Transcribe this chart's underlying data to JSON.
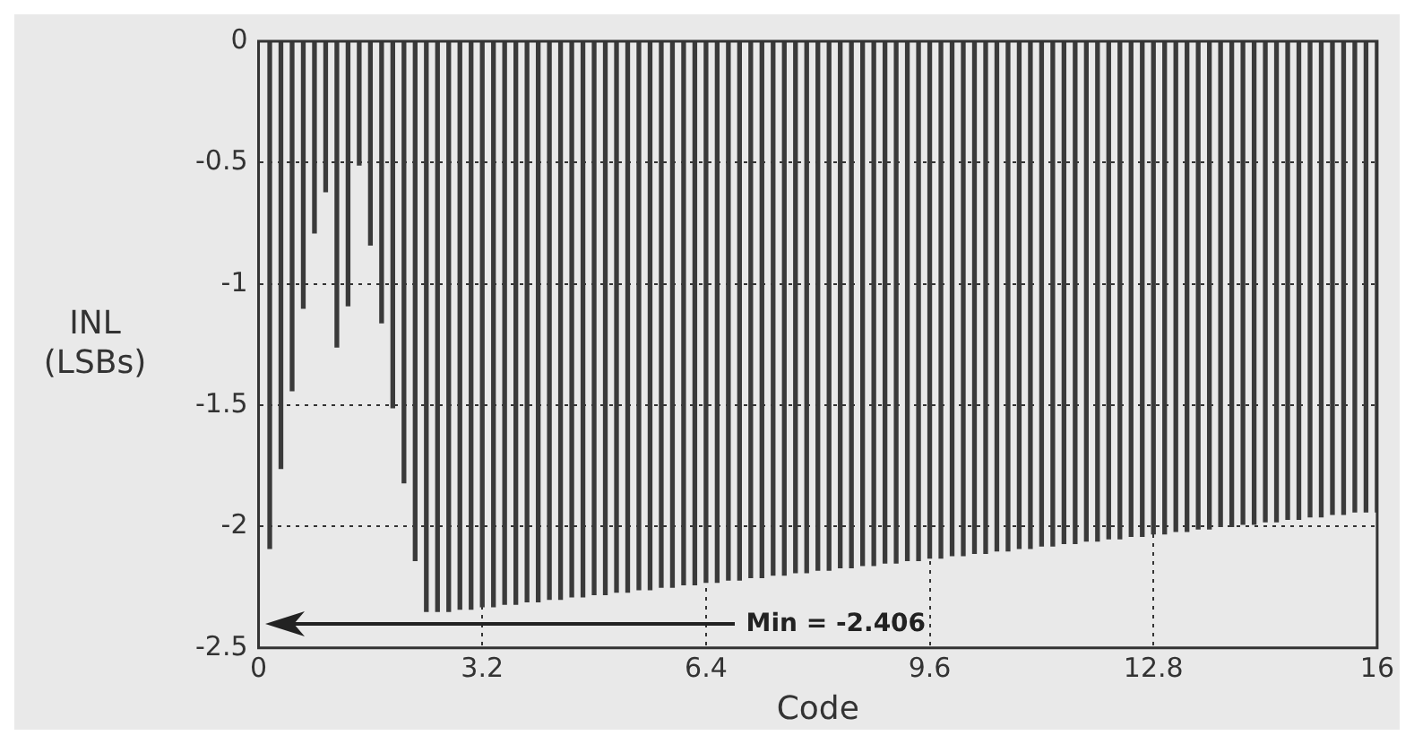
{
  "chart_data": {
    "type": "bar",
    "xlabel": "Code",
    "ylabel": "INL (LSBs)",
    "x": [
      0.16,
      0.32,
      0.48,
      0.64,
      0.8,
      0.96,
      1.12,
      1.28,
      1.44,
      1.6,
      1.76,
      1.92,
      2.08,
      2.24,
      2.4,
      2.56,
      2.72,
      2.88,
      3.04,
      3.2,
      3.36,
      3.52,
      3.68,
      3.84,
      4,
      4.16,
      4.32,
      4.48,
      4.64,
      4.8,
      4.96,
      5.12,
      5.28,
      5.44,
      5.6,
      5.76,
      5.92,
      6.08,
      6.24,
      6.4,
      6.56,
      6.72,
      6.88,
      7.04,
      7.2,
      7.36,
      7.52,
      7.68,
      7.84,
      8,
      8.16,
      8.32,
      8.48,
      8.64,
      8.8,
      8.96,
      9.12,
      9.28,
      9.44,
      9.6,
      9.76,
      9.92,
      10.08,
      10.24,
      10.4,
      10.56,
      10.72,
      10.88,
      11.04,
      11.2,
      11.36,
      11.52,
      11.68,
      11.84,
      12,
      12.16,
      12.32,
      12.48,
      12.64,
      12.8,
      12.96,
      13.12,
      13.28,
      13.44,
      13.6,
      13.76,
      13.92,
      14.08,
      14.24,
      14.4,
      14.56,
      14.72,
      14.88,
      15.04,
      15.2,
      15.36,
      15.52,
      15.68,
      15.84,
      16
    ],
    "values": [
      -2.09,
      -1.76,
      -1.44,
      -1.1,
      -0.79,
      -0.62,
      -1.26,
      -1.09,
      -0.51,
      -0.84,
      -1.16,
      -1.51,
      -1.82,
      -2.14,
      -2.35,
      -2.35,
      -2.35,
      -2.34,
      -2.34,
      -2.33,
      -2.33,
      -2.32,
      -2.32,
      -2.31,
      -2.31,
      -2.3,
      -2.3,
      -2.29,
      -2.29,
      -2.28,
      -2.28,
      -2.27,
      -2.27,
      -2.26,
      -2.26,
      -2.25,
      -2.25,
      -2.24,
      -2.24,
      -2.23,
      -2.23,
      -2.22,
      -2.22,
      -2.21,
      -2.21,
      -2.2,
      -2.2,
      -2.19,
      -2.19,
      -2.18,
      -2.18,
      -2.17,
      -2.17,
      -2.16,
      -2.16,
      -2.15,
      -2.15,
      -2.14,
      -2.14,
      -2.13,
      -2.13,
      -2.12,
      -2.12,
      -2.11,
      -2.11,
      -2.1,
      -2.1,
      -2.09,
      -2.09,
      -2.08,
      -2.08,
      -2.07,
      -2.07,
      -2.06,
      -2.06,
      -2.05,
      -2.05,
      -2.04,
      -2.04,
      -2.03,
      -2.03,
      -2.02,
      -2.02,
      -2.01,
      -2.01,
      -2,
      -2,
      -1.99,
      -1.99,
      -1.98,
      -1.98,
      -1.97,
      -1.97,
      -1.96,
      -1.96,
      -1.95,
      -1.95,
      -1.94,
      -1.94,
      -1.94
    ],
    "color": "#3a3a3a",
    "xlim": [
      0,
      16
    ],
    "xticks": [
      0,
      3.2,
      6.4,
      9.6,
      12.8,
      16
    ],
    "ylim": [
      -2.5,
      0
    ],
    "yticks": [
      0,
      -0.5,
      -1,
      -1.5,
      -2,
      -2.5
    ],
    "grid": true,
    "legend": false,
    "annotations": [
      "Min = -2.406"
    ]
  }
}
